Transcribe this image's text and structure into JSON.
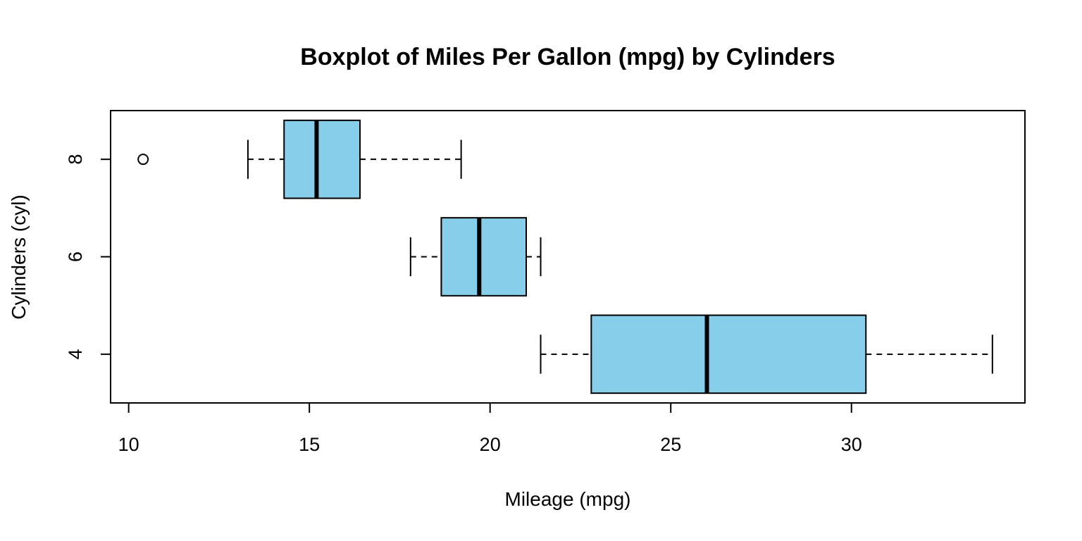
{
  "chart_data": {
    "type": "boxplot",
    "orientation": "horizontal",
    "title": "Boxplot of Miles Per Gallon (mpg) by Cylinders",
    "xlabel": "Mileage (mpg)",
    "ylabel": "Cylinders (cyl)",
    "xlim": [
      9.5,
      34.8
    ],
    "xticks": [
      10,
      15,
      20,
      25,
      30
    ],
    "ylim": [
      0.5,
      3.5
    ],
    "box_color": "#87CEEB",
    "grid": false,
    "series": [
      {
        "category": "4",
        "whisker_low": 21.4,
        "q1": 22.8,
        "median": 26.0,
        "q3": 30.4,
        "whisker_high": 33.9,
        "outliers": []
      },
      {
        "category": "6",
        "whisker_low": 17.8,
        "q1": 18.65,
        "median": 19.7,
        "q3": 21.0,
        "whisker_high": 21.4,
        "outliers": []
      },
      {
        "category": "8",
        "whisker_low": 13.3,
        "q1": 14.3,
        "median": 15.2,
        "q3": 16.4,
        "whisker_high": 19.2,
        "outliers": [
          10.4
        ]
      }
    ]
  }
}
